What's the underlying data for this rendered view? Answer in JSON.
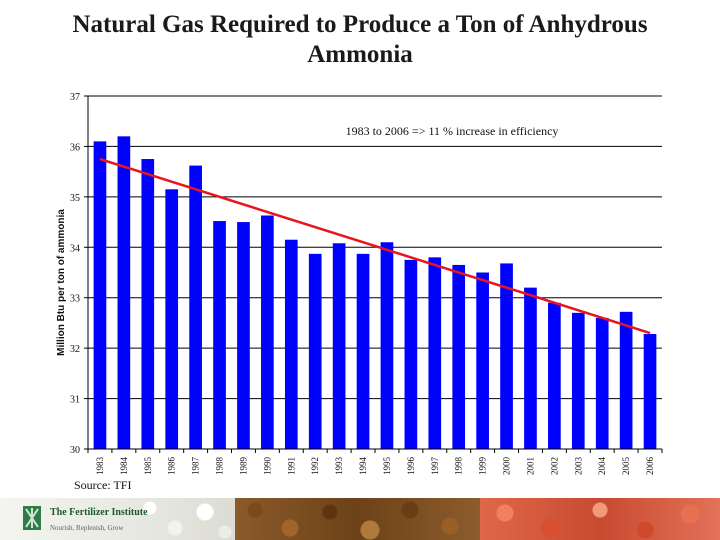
{
  "colors": {
    "bar": "#0000ff",
    "trend": "#e8141e",
    "grid": "#000000",
    "text": "#111111"
  },
  "footer": {
    "source": "Source: TFI",
    "logo_name": "The Fertilizer Institute",
    "logo_tagline": "Nourish, Replenish, Grow"
  },
  "chart_data": {
    "type": "bar",
    "title": "Natural Gas Required to Produce a Ton of Anhydrous Ammonia",
    "annotation": "1983 to 2006 => 11 % increase in efficiency",
    "xlabel": "",
    "ylabel": "Million Btu per ton of ammonia",
    "categories": [
      "1983",
      "1984",
      "1985",
      "1986",
      "1987",
      "1988",
      "1989",
      "1990",
      "1991",
      "1992",
      "1993",
      "1994",
      "1995",
      "1996",
      "1997",
      "1998",
      "1999",
      "2000",
      "2001",
      "2002",
      "2003",
      "2004",
      "2005",
      "2006"
    ],
    "values": [
      36.1,
      36.2,
      35.75,
      35.15,
      35.62,
      34.52,
      34.5,
      34.63,
      34.15,
      33.87,
      34.08,
      33.87,
      34.1,
      33.75,
      33.8,
      33.65,
      33.5,
      33.68,
      33.2,
      32.9,
      32.7,
      32.6,
      32.72,
      32.28
    ],
    "ylim": [
      30,
      37
    ],
    "yticks": [
      30,
      31,
      32,
      33,
      34,
      35,
      36,
      37
    ],
    "trendline": {
      "start": 35.75,
      "end": 32.3
    },
    "grid": true
  }
}
